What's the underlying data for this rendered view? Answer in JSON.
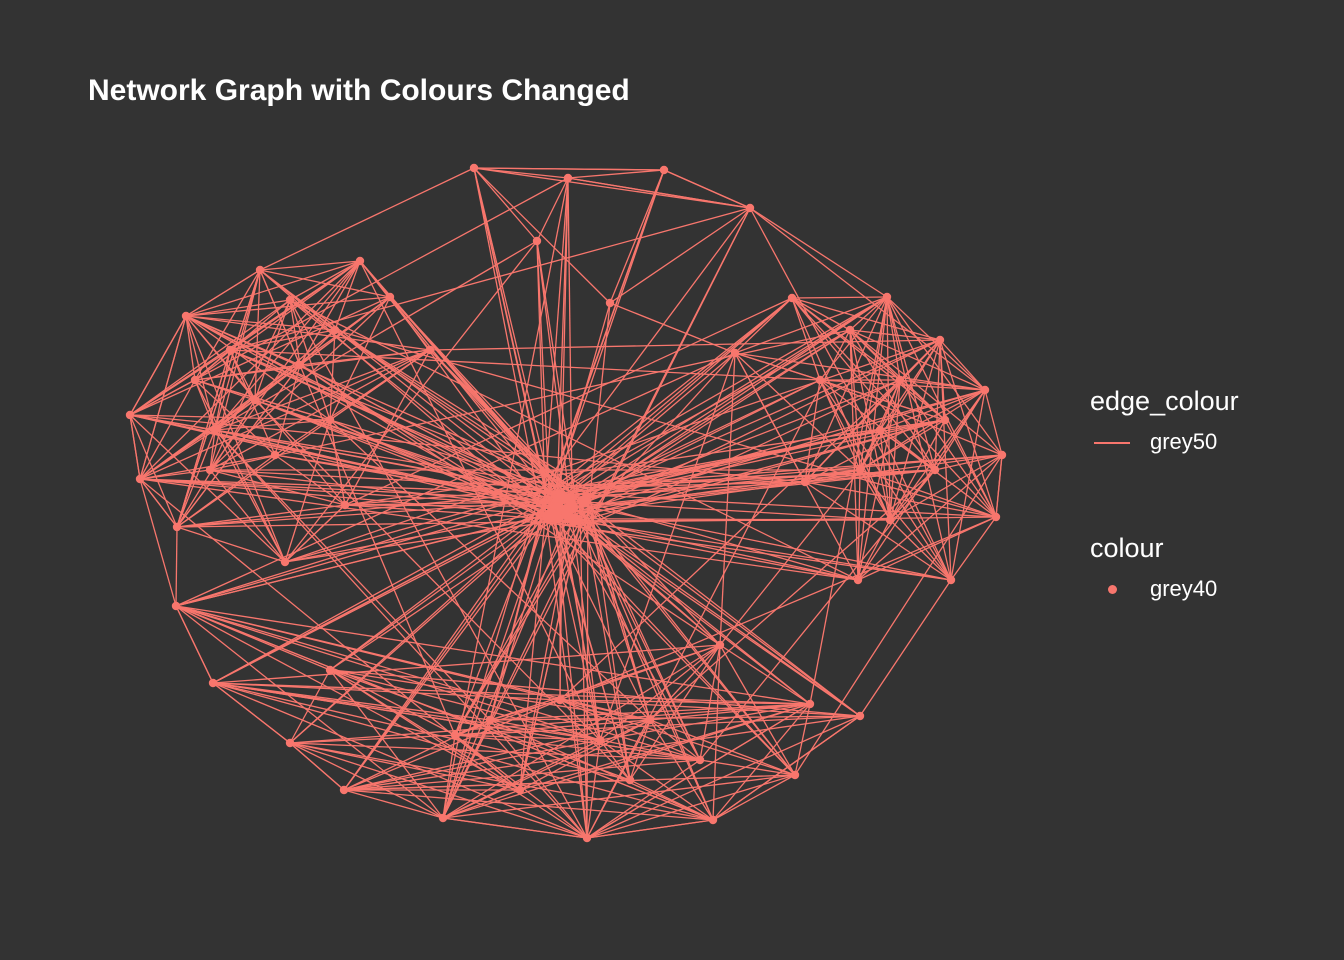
{
  "title": "Network Graph with Colours Changed",
  "colors": {
    "background": "#333333",
    "edge": "#f8766d",
    "node": "#f8766d",
    "text": "#ffffff"
  },
  "legend": {
    "edge": {
      "title": "edge_colour",
      "label": "grey50"
    },
    "node": {
      "title": "colour",
      "label": "grey40"
    }
  }
}
